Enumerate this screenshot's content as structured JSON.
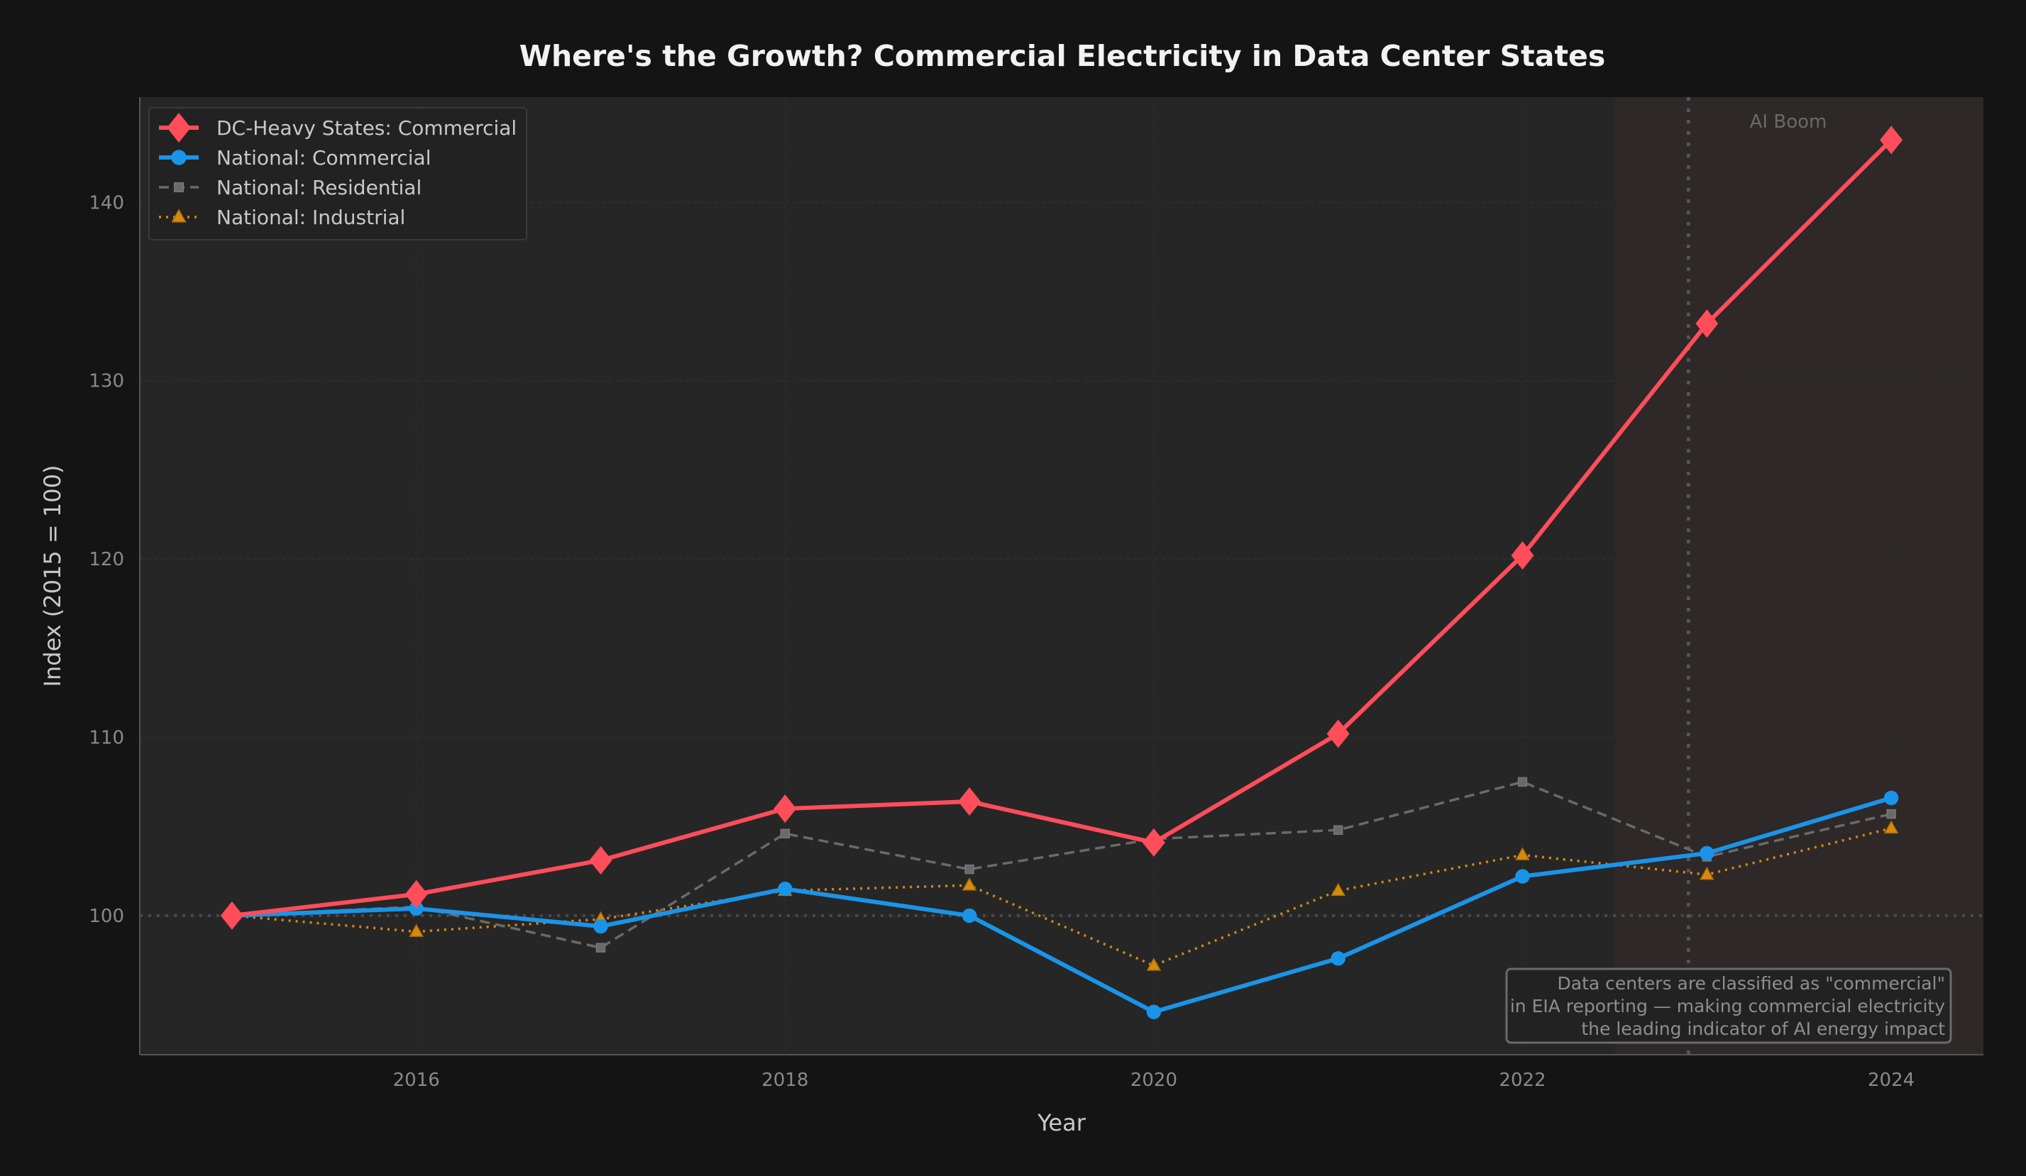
{
  "chart_data": {
    "type": "line",
    "title": "Where's the Growth? Commercial Electricity in Data Center States",
    "xlabel": "Year",
    "ylabel": "Index (2015 = 100)",
    "x": [
      2015,
      2016,
      2017,
      2018,
      2019,
      2020,
      2021,
      2022,
      2023,
      2024
    ],
    "xlim": [
      2014.5,
      2024.5
    ],
    "ylim": [
      92.2,
      145.9
    ],
    "xticks": [
      2016,
      2018,
      2020,
      2022,
      2024
    ],
    "yticks": [
      100,
      110,
      120,
      130,
      140
    ],
    "grid": true,
    "legend_position": "top-left",
    "baseline": 100,
    "highlight_region": {
      "from": 2022.5,
      "to": 2024.5,
      "label": "AI Boom",
      "marker_year": 2022.9
    },
    "series": [
      {
        "name": "DC-Heavy States: Commercial",
        "color": "#ff4d5a",
        "marker": "diamond",
        "style": "solid",
        "values": [
          100,
          101.2,
          103.1,
          106.0,
          106.4,
          104.1,
          110.2,
          120.2,
          133.2,
          143.5
        ]
      },
      {
        "name": "National: Commercial",
        "color": "#1a94e8",
        "marker": "circle",
        "style": "solid",
        "values": [
          100,
          100.4,
          99.4,
          101.5,
          100.0,
          94.6,
          97.6,
          102.2,
          103.5,
          106.6
        ]
      },
      {
        "name": "National: Residential",
        "color": "#6a6a6a",
        "marker": "square",
        "style": "dashed",
        "values": [
          100,
          100.5,
          98.2,
          104.6,
          102.6,
          104.3,
          104.8,
          107.5,
          103.3,
          105.7
        ]
      },
      {
        "name": "National: Industrial",
        "color": "#d68a10",
        "marker": "triangle",
        "style": "dotted",
        "values": [
          100,
          99.1,
          99.8,
          101.4,
          101.7,
          97.2,
          101.4,
          103.4,
          102.3,
          104.9
        ]
      }
    ],
    "annotation": [
      "Data centers are classified as \"commercial\"",
      "in EIA reporting — making commercial electricity",
      "the leading indicator of AI energy impact"
    ]
  }
}
